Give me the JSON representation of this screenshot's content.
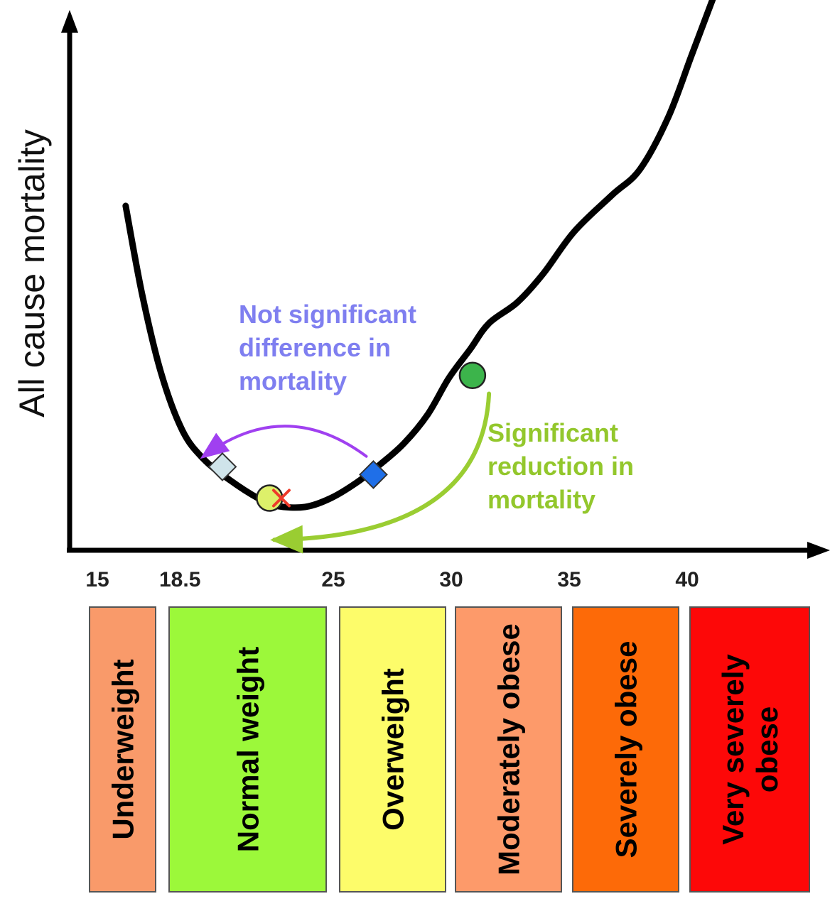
{
  "chart_data": {
    "type": "line",
    "title": "",
    "xlabel": "",
    "ylabel": "All cause mortality",
    "xlim": [
      13,
      46
    ],
    "ylim": [
      0,
      100
    ],
    "x_ticks": [
      15,
      18.5,
      25,
      30,
      35,
      40
    ],
    "x_tick_labels": [
      "15",
      "18.5",
      "25",
      "30",
      "35",
      "40"
    ],
    "grid": false,
    "legend": "none",
    "series": [
      {
        "curve_color": "#000000",
        "points": [
          [
            16.2,
            66
          ],
          [
            16.9,
            49
          ],
          [
            17.7,
            34
          ],
          [
            18.6,
            23
          ],
          [
            19.5,
            17.5
          ],
          [
            20.6,
            13.5
          ],
          [
            21.8,
            10
          ],
          [
            22.6,
            8.5
          ],
          [
            23.8,
            8.3
          ],
          [
            24.9,
            10
          ],
          [
            26.0,
            13
          ],
          [
            27.0,
            16.5
          ],
          [
            28.0,
            20.5
          ],
          [
            29.0,
            26
          ],
          [
            29.9,
            33
          ],
          [
            30.8,
            38.5
          ],
          [
            31.6,
            43.5
          ],
          [
            32.8,
            47.5
          ],
          [
            33.9,
            53
          ],
          [
            35.2,
            61
          ],
          [
            36.8,
            68
          ],
          [
            38.0,
            73
          ],
          [
            39.2,
            83
          ],
          [
            40.2,
            95
          ],
          [
            41.2,
            107
          ]
        ]
      }
    ],
    "markers": [
      {
        "shape": "diamond",
        "x": 20.3,
        "y": 16,
        "color": "#cfe4ea"
      },
      {
        "shape": "circle",
        "x": 22.3,
        "y": 10,
        "color": "#ddf06a"
      },
      {
        "shape": "x",
        "x": 22.8,
        "y": 10,
        "color": "#ee3a2a"
      },
      {
        "shape": "diamond",
        "x": 26.7,
        "y": 14.5,
        "color": "#1f6fe8"
      },
      {
        "shape": "circle",
        "x": 30.9,
        "y": 33.5,
        "color": "#3cb44b"
      }
    ],
    "annotations": [
      {
        "text_lines": [
          "Not significant",
          "difference in",
          "mortality"
        ],
        "color": "#7f7ff0",
        "arrow_color": "#a040f0",
        "arrow": {
          "from": [
            26.4,
            18
          ],
          "to": [
            19.5,
            18
          ]
        }
      },
      {
        "text_lines": [
          "Significant",
          "reduction in",
          "mortality"
        ],
        "color": "#93c72c",
        "arrow_color": "#9acd32",
        "arrow": {
          "from": [
            31.6,
            30
          ],
          "to": [
            22.5,
            2
          ]
        }
      }
    ],
    "categories": [
      {
        "label": "Underweight",
        "color": "#f99a6a"
      },
      {
        "label": "Normal weight",
        "color": "#9cf83a"
      },
      {
        "label": "Overweight",
        "color": "#fdfc6a"
      },
      {
        "label": "Moderately obese",
        "color": "#fd9a6a"
      },
      {
        "label": "Severely obese",
        "color": "#fd6a08"
      },
      {
        "label": "Very severely obese",
        "color": "#fd0808"
      }
    ]
  }
}
